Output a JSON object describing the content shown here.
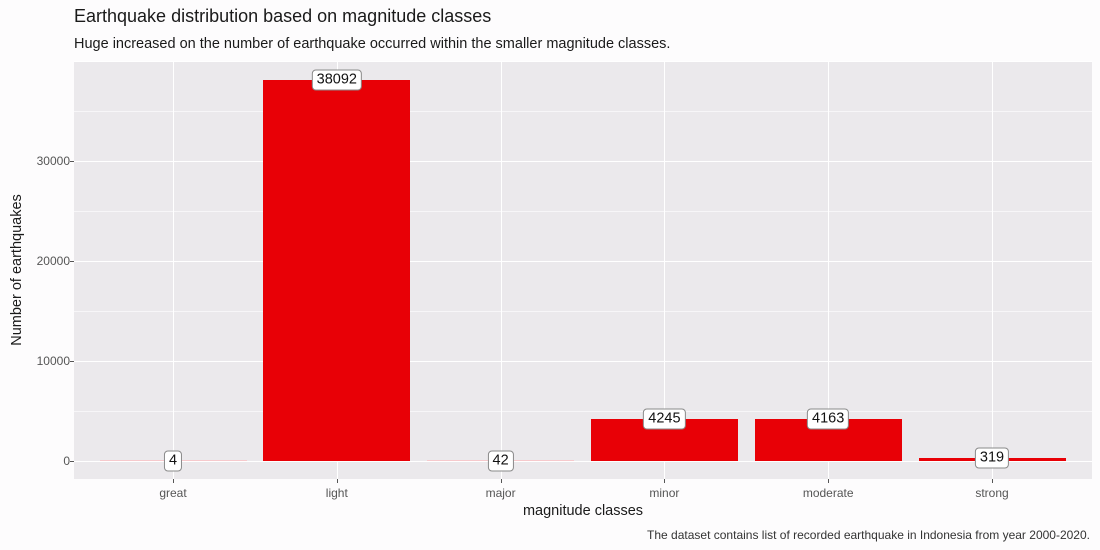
{
  "chart_data": {
    "type": "bar",
    "title": "Earthquake distribution based on magnitude classes",
    "subtitle": "Huge increased on the number of earthquake occurred within the smaller magnitude classes.",
    "caption": "The dataset contains list of recorded earthquake in Indonesia from year 2000-2020.",
    "xlabel": "magnitude classes",
    "ylabel": "Number of earthquakes",
    "categories": [
      "great",
      "light",
      "major",
      "minor",
      "moderate",
      "strong"
    ],
    "values": [
      4,
      38092,
      42,
      4245,
      4163,
      319
    ],
    "value_labels": [
      "4",
      "38092",
      "42",
      "4245",
      "4163",
      "319"
    ],
    "yticks": [
      0,
      10000,
      20000,
      30000
    ],
    "ytick_labels": [
      "0",
      "10000",
      "20000",
      "30000"
    ],
    "ylim": [
      -1800,
      39900
    ],
    "bar_color": "#e80006",
    "panel_background": "#ebe9ec",
    "grid": true,
    "legend": "none"
  }
}
